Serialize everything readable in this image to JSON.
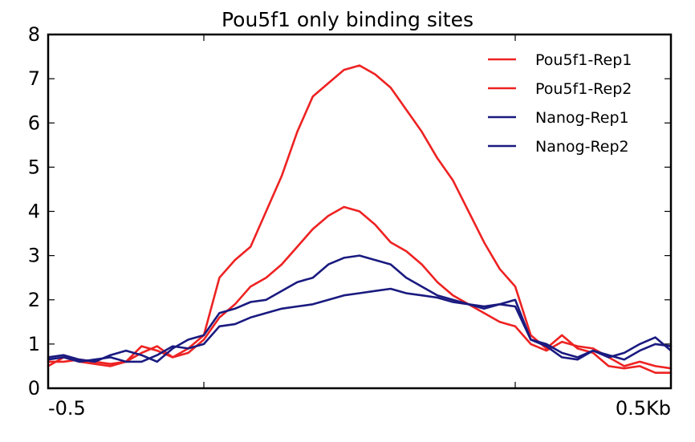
{
  "chart_data": {
    "type": "line",
    "title": "Pou5f1 only binding sites",
    "xlabel": "",
    "ylabel": "",
    "xlim": [
      -0.5,
      0.5
    ],
    "ylim": [
      0,
      8
    ],
    "xtick_values": [
      -0.5,
      -0.25,
      0.25,
      0.5
    ],
    "xtick_labels": [
      "-0.5",
      "",
      "",
      "0.5Kb"
    ],
    "ytick_values": [
      0,
      1,
      2,
      3,
      4,
      5,
      6,
      7,
      8
    ],
    "ytick_labels": [
      "0",
      "1",
      "2",
      "3",
      "4",
      "5",
      "6",
      "7",
      "8"
    ],
    "legend_position": "top-right",
    "grid": false,
    "x": [
      -0.5,
      -0.475,
      -0.45,
      -0.425,
      -0.4,
      -0.375,
      -0.35,
      -0.325,
      -0.3,
      -0.275,
      -0.25,
      -0.225,
      -0.2,
      -0.175,
      -0.15,
      -0.125,
      -0.1,
      -0.075,
      -0.05,
      -0.025,
      0.0,
      0.025,
      0.05,
      0.075,
      0.1,
      0.125,
      0.15,
      0.175,
      0.2,
      0.225,
      0.25,
      0.275,
      0.3,
      0.325,
      0.35,
      0.375,
      0.4,
      0.425,
      0.45,
      0.475,
      0.5
    ],
    "series": [
      {
        "name": "Pou5f1-Rep1",
        "color": "#ee2222",
        "values": [
          0.5,
          0.7,
          0.6,
          0.55,
          0.5,
          0.6,
          0.95,
          0.85,
          0.7,
          0.9,
          1.2,
          2.5,
          2.9,
          3.2,
          4.0,
          4.8,
          5.8,
          6.6,
          6.9,
          7.2,
          7.3,
          7.1,
          6.8,
          6.3,
          5.8,
          5.2,
          4.7,
          4.0,
          3.3,
          2.7,
          2.3,
          1.2,
          0.9,
          1.2,
          0.9,
          0.8,
          0.5,
          0.45,
          0.5,
          0.35,
          0.35
        ]
      },
      {
        "name": "Pou5f1-Rep2",
        "color": "#ee2222",
        "values": [
          0.6,
          0.6,
          0.65,
          0.6,
          0.55,
          0.6,
          0.8,
          0.95,
          0.7,
          0.8,
          1.1,
          1.6,
          1.9,
          2.3,
          2.5,
          2.8,
          3.2,
          3.6,
          3.9,
          4.1,
          4.0,
          3.7,
          3.3,
          3.1,
          2.8,
          2.4,
          2.1,
          1.9,
          1.7,
          1.5,
          1.4,
          1.0,
          0.85,
          1.05,
          0.95,
          0.9,
          0.7,
          0.5,
          0.6,
          0.5,
          0.45
        ]
      },
      {
        "name": "Nanog-Rep1",
        "color": "#1a1a80",
        "values": [
          0.7,
          0.75,
          0.65,
          0.6,
          0.75,
          0.85,
          0.75,
          0.6,
          0.9,
          1.1,
          1.2,
          1.7,
          1.8,
          1.95,
          2.0,
          2.2,
          2.4,
          2.5,
          2.8,
          2.95,
          3.0,
          2.9,
          2.8,
          2.5,
          2.3,
          2.1,
          2.0,
          1.9,
          1.85,
          1.9,
          2.0,
          1.1,
          1.0,
          0.8,
          0.7,
          0.85,
          0.7,
          0.8,
          1.0,
          1.15,
          0.85
        ]
      },
      {
        "name": "Nanog-Rep2",
        "color": "#1a1a80",
        "values": [
          0.65,
          0.7,
          0.6,
          0.65,
          0.7,
          0.6,
          0.6,
          0.75,
          0.95,
          0.9,
          1.0,
          1.4,
          1.45,
          1.6,
          1.7,
          1.8,
          1.85,
          1.9,
          2.0,
          2.1,
          2.15,
          2.2,
          2.25,
          2.15,
          2.1,
          2.05,
          1.95,
          1.9,
          1.8,
          1.9,
          1.85,
          1.1,
          0.95,
          0.7,
          0.65,
          0.85,
          0.75,
          0.65,
          0.85,
          1.0,
          0.95
        ]
      }
    ]
  }
}
